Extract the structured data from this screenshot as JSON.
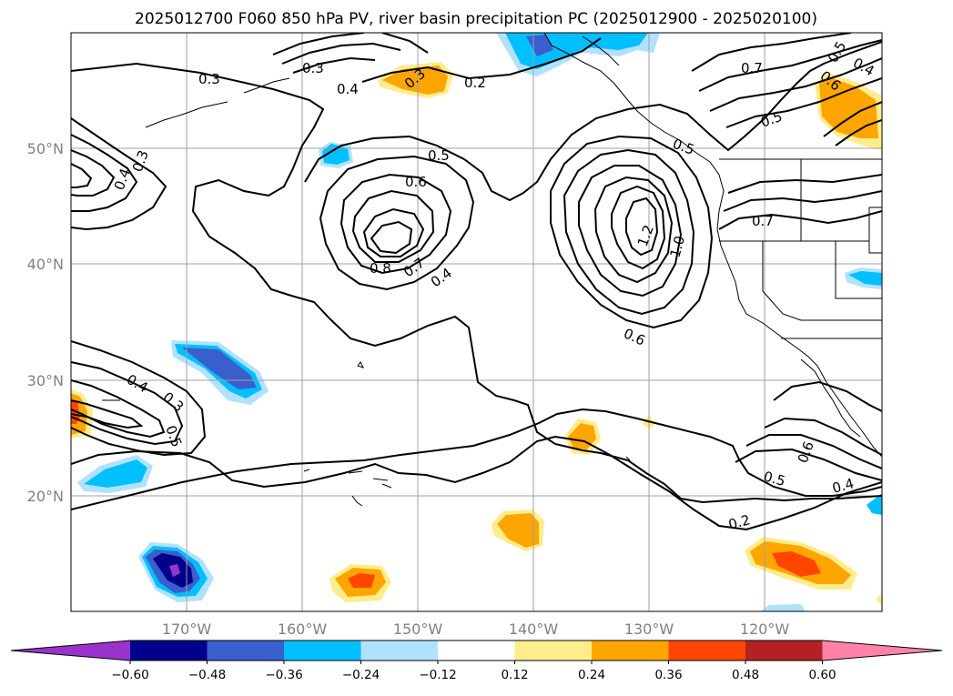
{
  "title": "2025012700 F060 850 hPa PV, river basin precipitation PC (2025012900 - 2025020100)",
  "map": {
    "lon_labels": [
      "170°W",
      "160°W",
      "150°W",
      "140°W",
      "130°W",
      "120°W"
    ],
    "lat_labels": [
      "50°N",
      "40°N",
      "30°N",
      "20°N"
    ],
    "contour_labels": [
      "0.3",
      "0.3",
      "0.4",
      "0.3",
      "0.4",
      "0.2",
      "0.5",
      "0.6",
      "0.8",
      "0.7",
      "0.4",
      "0.6",
      "1.2",
      "1.0",
      "0.7",
      "0.7",
      "0.5",
      "0.4",
      "0.3",
      "0.5",
      "0.6",
      "0.5",
      "0.4",
      "0.2",
      "0.4",
      "0.6",
      "0.5",
      "0.3",
      "0.5"
    ]
  },
  "colorbar": {
    "tick_labels": [
      "−0.60",
      "−0.48",
      "−0.36",
      "−0.24",
      "−0.12",
      "0.12",
      "0.24",
      "0.36",
      "0.48",
      "0.60"
    ],
    "colors": [
      "#9933cc",
      "#00008b",
      "#3a5fcd",
      "#00bfff",
      "#b0e2ff",
      "#ffffff",
      "#ffec8b",
      "#ffa500",
      "#ff4500",
      "#b22222",
      "#ff83a8"
    ]
  }
}
